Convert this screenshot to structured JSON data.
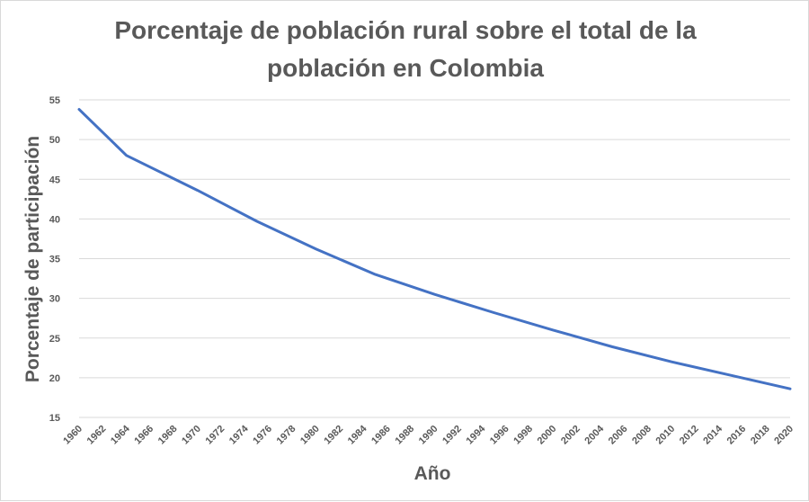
{
  "chart_data": {
    "type": "line",
    "title_line1": "Porcentaje de población rural sobre el total de la",
    "title_line2": "población en Colombia",
    "xlabel": "Año",
    "ylabel": "Porcentaje de participación",
    "ylim": [
      15,
      55
    ],
    "yticks": [
      15,
      20,
      25,
      30,
      35,
      40,
      45,
      50,
      55
    ],
    "xticks": [
      1960,
      1962,
      1964,
      1966,
      1968,
      1970,
      1972,
      1974,
      1976,
      1978,
      1980,
      1982,
      1984,
      1986,
      1988,
      1990,
      1992,
      1994,
      1996,
      1998,
      2000,
      2002,
      2004,
      2006,
      2008,
      2010,
      2012,
      2014,
      2016,
      2018,
      2020
    ],
    "grid": true,
    "legend": "none",
    "colors": {
      "line": "#4472c4",
      "grid": "#d9d9d9",
      "text": "#595959"
    },
    "series": [
      {
        "x": [
          1960,
          1964,
          1970,
          1975,
          1980,
          1985,
          1990,
          1995,
          2000,
          2005,
          2010,
          2015,
          2020
        ],
        "values": [
          53.8,
          48.0,
          43.6,
          39.7,
          36.2,
          33.0,
          30.5,
          28.2,
          26.0,
          23.9,
          22.0,
          20.3,
          18.6
        ]
      }
    ]
  }
}
